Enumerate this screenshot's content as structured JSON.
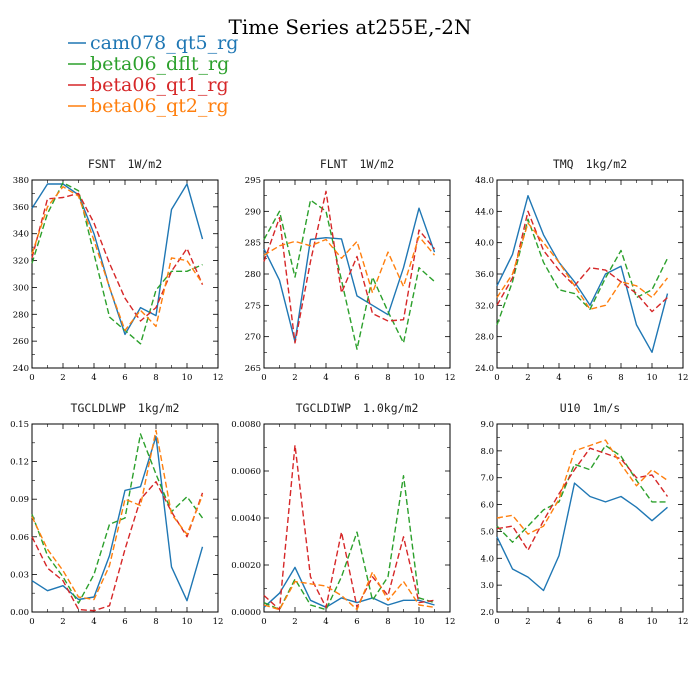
{
  "title": "Time Series at255E,-2N",
  "legend": [
    {
      "name": "cam078_qt5_rg",
      "color": "#1f77b4",
      "dash": "solid"
    },
    {
      "name": "beta06_dflt_rg",
      "color": "#2ca02c",
      "dash": "dashed"
    },
    {
      "name": "beta06_qt1_rg",
      "color": "#d62728",
      "dash": "dashed"
    },
    {
      "name": "beta06_qt2_rg",
      "color": "#ff7f0e",
      "dash": "dashed"
    }
  ],
  "chart_data": [
    {
      "type": "line",
      "title": "FSNT",
      "units": "1W/m2",
      "x": [
        0,
        1,
        2,
        3,
        4,
        5,
        6,
        7,
        8,
        9,
        10,
        11
      ],
      "xlim": [
        0,
        12
      ],
      "xticks": [
        "0",
        "2",
        "4",
        "6",
        "8",
        "10",
        "12"
      ],
      "ylim": [
        240,
        380
      ],
      "yticks": [
        "240",
        "260",
        "280",
        "300",
        "320",
        "340",
        "360",
        "380"
      ],
      "series": [
        {
          "name": "cam078_qt5_rg",
          "values": [
            359,
            377,
            377,
            369,
            340,
            300,
            265,
            285,
            279,
            358,
            377,
            336
          ]
        },
        {
          "name": "beta06_dflt_rg",
          "values": [
            318,
            355,
            378,
            372,
            325,
            278,
            268,
            258,
            298,
            312,
            312,
            317
          ]
        },
        {
          "name": "beta06_qt1_rg",
          "values": [
            322,
            366,
            367,
            370,
            348,
            318,
            292,
            275,
            285,
            312,
            329,
            302
          ]
        },
        {
          "name": "beta06_qt2_rg",
          "values": [
            325,
            360,
            375,
            368,
            335,
            300,
            268,
            283,
            271,
            322,
            320,
            303
          ]
        }
      ]
    },
    {
      "type": "line",
      "title": "FLNT",
      "units": "1W/m2",
      "x": [
        0,
        1,
        2,
        3,
        4,
        5,
        6,
        7,
        8,
        9,
        10,
        11
      ],
      "xlim": [
        0,
        12
      ],
      "xticks": [
        "0",
        "2",
        "4",
        "6",
        "8",
        "10",
        "12"
      ],
      "ylim": [
        265,
        295
      ],
      "yticks": [
        "265",
        "270",
        "275",
        "280",
        "285",
        "290",
        "295"
      ],
      "series": [
        {
          "name": "cam078_qt5_rg",
          "values": [
            284,
            279,
            269.2,
            285.5,
            285.8,
            285.6,
            276.5,
            275,
            273.5,
            281,
            290.5,
            283.5
          ]
        },
        {
          "name": "beta06_dflt_rg",
          "values": [
            285.5,
            290,
            279.5,
            291.8,
            290,
            279,
            268,
            279.5,
            274,
            269,
            281,
            278.8
          ]
        },
        {
          "name": "beta06_qt1_rg",
          "values": [
            282,
            289,
            269,
            282,
            293.2,
            277,
            282.8,
            273.7,
            272.5,
            272.7,
            287,
            284
          ]
        },
        {
          "name": "beta06_qt2_rg",
          "values": [
            283,
            284.5,
            285.2,
            284.5,
            285.5,
            282.5,
            285.2,
            277,
            283.5,
            278,
            286,
            283
          ]
        }
      ]
    },
    {
      "type": "line",
      "title": "TMQ",
      "units": "1kg/m2",
      "x": [
        0,
        1,
        2,
        3,
        4,
        5,
        6,
        7,
        8,
        9,
        10,
        11
      ],
      "xlim": [
        0,
        12
      ],
      "xticks": [
        "0",
        "2",
        "4",
        "6",
        "8",
        "10",
        "12"
      ],
      "ylim": [
        24,
        48
      ],
      "yticks": [
        "24.0",
        "28.0",
        "32.0",
        "36.0",
        "40.0",
        "44.0",
        "48.0"
      ],
      "series": [
        {
          "name": "cam078_qt5_rg",
          "values": [
            34.5,
            38.5,
            46,
            41,
            37.5,
            35,
            32,
            36,
            37,
            29.5,
            26,
            33.5
          ]
        },
        {
          "name": "beta06_dflt_rg",
          "values": [
            29.5,
            35,
            43,
            37.5,
            34,
            33.5,
            31.5,
            35.5,
            39,
            33,
            34,
            38
          ]
        },
        {
          "name": "beta06_qt1_rg",
          "values": [
            32,
            35.5,
            44,
            39,
            36.5,
            34.5,
            36.8,
            36.5,
            35,
            33.5,
            31.2,
            33
          ]
        },
        {
          "name": "beta06_qt2_rg",
          "values": [
            33,
            36,
            42.5,
            40,
            37.5,
            34.5,
            31.5,
            32,
            35,
            34.5,
            33,
            35.5
          ]
        }
      ]
    },
    {
      "type": "line",
      "title": "TGCLDLWP",
      "units": "1kg/m2",
      "x": [
        0,
        1,
        2,
        3,
        4,
        5,
        6,
        7,
        8,
        9,
        10,
        11
      ],
      "xlim": [
        0,
        12
      ],
      "xticks": [
        "0",
        "2",
        "4",
        "6",
        "8",
        "10",
        "12"
      ],
      "ylim": [
        0,
        0.15
      ],
      "yticks": [
        "0.00",
        "0.03",
        "0.06",
        "0.09",
        "0.12",
        "0.15"
      ],
      "series": [
        {
          "name": "cam078_qt5_rg",
          "values": [
            0.025,
            0.017,
            0.021,
            0.01,
            0.012,
            0.045,
            0.097,
            0.1,
            0.14,
            0.036,
            0.009,
            0.052
          ]
        },
        {
          "name": "beta06_dflt_rg",
          "values": [
            0.078,
            0.045,
            0.028,
            0.007,
            0.03,
            0.07,
            0.075,
            0.142,
            0.11,
            0.08,
            0.092,
            0.075
          ]
        },
        {
          "name": "beta06_qt1_rg",
          "values": [
            0.06,
            0.035,
            0.025,
            0.002,
            0.001,
            0.005,
            0.05,
            0.09,
            0.104,
            0.08,
            0.06,
            0.095
          ]
        },
        {
          "name": "beta06_qt2_rg",
          "values": [
            0.076,
            0.05,
            0.033,
            0.012,
            0.01,
            0.037,
            0.09,
            0.085,
            0.145,
            0.078,
            0.062,
            0.093
          ]
        }
      ]
    },
    {
      "type": "line",
      "title": "TGCLDIWP",
      "units": "1.0kg/m2",
      "x": [
        0,
        1,
        2,
        3,
        4,
        5,
        6,
        7,
        8,
        9,
        10,
        11
      ],
      "xlim": [
        0,
        12
      ],
      "xticks": [
        "0",
        "2",
        "4",
        "6",
        "8",
        "10",
        "12"
      ],
      "ylim": [
        0,
        0.008
      ],
      "yticks": [
        "0.0000",
        "0.0020",
        "0.0040",
        "0.0060",
        "0.0080"
      ],
      "series": [
        {
          "name": "cam078_qt5_rg",
          "values": [
            0.0002,
            0.0008,
            0.0019,
            0.0005,
            0.0002,
            0.0006,
            0.0004,
            0.0006,
            0.0003,
            0.0005,
            0.0005,
            0.0003
          ]
        },
        {
          "name": "beta06_dflt_rg",
          "values": [
            0.0004,
            0.0001,
            0.0014,
            0.0003,
            0.0001,
            0.0015,
            0.0034,
            0.0005,
            0.0015,
            0.0058,
            0.0006,
            0.0004
          ]
        },
        {
          "name": "beta06_qt1_rg",
          "values": [
            0.0007,
            0.0001,
            0.0071,
            0.0015,
            0.0002,
            0.0034,
            0.0002,
            0.0015,
            0.0007,
            0.0032,
            0.0004,
            0.0005
          ]
        },
        {
          "name": "beta06_qt2_rg",
          "values": [
            0.0003,
            0.0001,
            0.0013,
            0.0012,
            0.0011,
            0.0007,
            0.0001,
            0.0017,
            0.0005,
            0.0013,
            0.0003,
            0.0002
          ]
        }
      ]
    },
    {
      "type": "line",
      "title": "U10",
      "units": "1m/s",
      "x": [
        0,
        1,
        2,
        3,
        4,
        5,
        6,
        7,
        8,
        9,
        10,
        11
      ],
      "xlim": [
        0,
        12
      ],
      "xticks": [
        "0",
        "2",
        "4",
        "6",
        "8",
        "10",
        "12"
      ],
      "ylim": [
        2,
        9
      ],
      "yticks": [
        "2.0",
        "3.0",
        "4.0",
        "5.0",
        "6.0",
        "7.0",
        "8.0",
        "9.0"
      ],
      "series": [
        {
          "name": "cam078_qt5_rg",
          "values": [
            4.8,
            3.6,
            3.3,
            2.8,
            4.1,
            6.8,
            6.3,
            6.1,
            6.3,
            5.9,
            5.4,
            5.9
          ]
        },
        {
          "name": "beta06_dflt_rg",
          "values": [
            5.2,
            4.6,
            5.2,
            5.8,
            6.1,
            7.5,
            7.3,
            8.2,
            7.8,
            6.9,
            6.1,
            6.1
          ]
        },
        {
          "name": "beta06_qt1_rg",
          "values": [
            5.1,
            5.2,
            4.3,
            5.4,
            6.4,
            7.3,
            8.1,
            7.9,
            7.7,
            7.0,
            7.1,
            6.3
          ]
        },
        {
          "name": "beta06_qt2_rg",
          "values": [
            5.5,
            5.6,
            4.9,
            5.2,
            6.2,
            8.0,
            8.2,
            8.4,
            7.5,
            6.7,
            7.3,
            6.9
          ]
        }
      ]
    }
  ]
}
